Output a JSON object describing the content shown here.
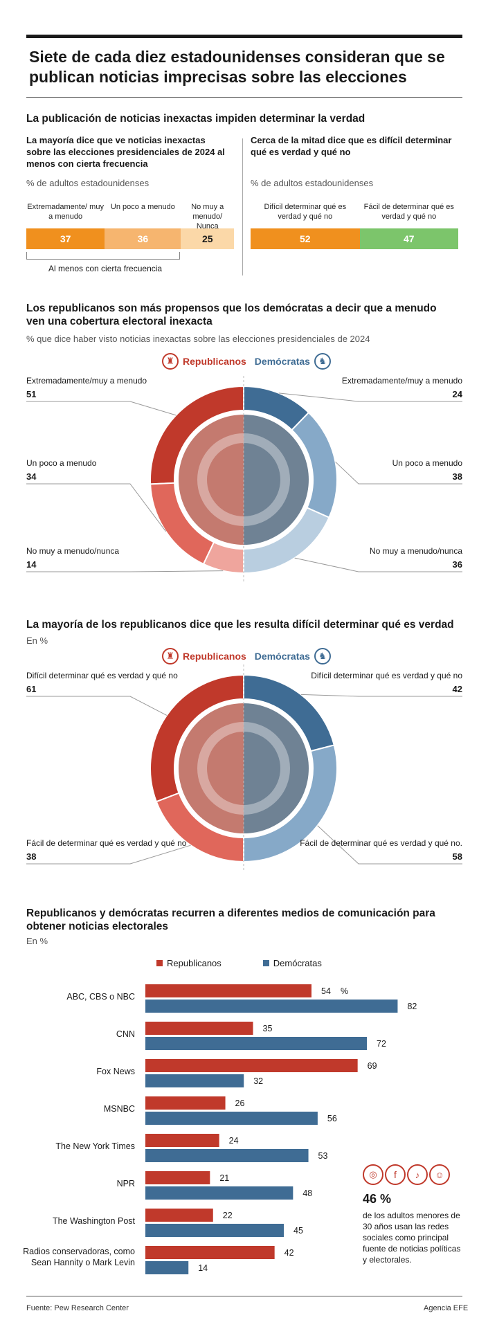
{
  "headline": "Siete de cada diez estadounidenses consideran que se publican noticias imprecisas sobre las elecciones",
  "section1": {
    "title": "La publicación de noticias inexactas impiden determinar la verdad",
    "left": {
      "heading": "La mayoría dice que ve noticias inexactas sobre las elecciones presidenciales de 2024 al menos con cierta frecuencia",
      "unit": "% de adultos estadounidenses",
      "segments": [
        {
          "label": "Extremadamente/ muy a menudo",
          "value": 37,
          "color": "#f0901e"
        },
        {
          "label": "Un poco a menudo",
          "value": 36,
          "color": "#f6b56f"
        },
        {
          "label": "No muy a menudo/ Nunca",
          "value": 25,
          "color": "#fbd8a8"
        }
      ],
      "bracket_label": "Al menos con cierta frecuencia"
    },
    "right": {
      "heading": "Cerca de la mitad dice que es difícil determinar qué es verdad y qué no",
      "unit": "% de adultos estadounidenses",
      "segments": [
        {
          "label": "Difícil determinar qué es verdad y qué no",
          "value": 52,
          "color": "#f0901e"
        },
        {
          "label": "Fácil de determinar qué es verdad y qué no",
          "value": 47,
          "color": "#7cc56b"
        }
      ]
    }
  },
  "legend": {
    "rep": "Republicanos",
    "dem": "Demócratas"
  },
  "section2": {
    "title": "Los republicanos son más propensos que los demócratas a decir que a menudo ven una cobertura electoral inexacta",
    "subtitle": "% que dice haber visto noticias inexactas sobre las elecciones presidenciales de 2024",
    "rep": [
      {
        "label": "Extremadamente/muy a menudo",
        "value": 51,
        "color": "#c0392b"
      },
      {
        "label": "Un poco a menudo",
        "value": 34,
        "color": "#e0675b"
      },
      {
        "label": "No muy a menudo/nunca",
        "value": 14,
        "color": "#efa59d"
      }
    ],
    "dem": [
      {
        "label": "Extremadamente/muy a menudo",
        "value": 24,
        "color": "#3f6c94"
      },
      {
        "label": "Un poco a menudo",
        "value": 38,
        "color": "#86a9c8"
      },
      {
        "label": "No muy a menudo/nunca",
        "value": 36,
        "color": "#b9cee0"
      }
    ]
  },
  "section3": {
    "title": "La mayoría de los republicanos dice que les resulta difícil determinar qué es verdad",
    "subtitle": "En %",
    "rep": [
      {
        "label": "Difícil determinar qué es verdad y qué no",
        "value": 61,
        "color": "#c0392b"
      },
      {
        "label": "Fácil de determinar qué es verdad y qué no",
        "value": 38,
        "color": "#e0675b"
      }
    ],
    "dem": [
      {
        "label": "Difícil determinar qué es verdad y qué no",
        "value": 42,
        "color": "#3f6c94"
      },
      {
        "label": "Fácil de determinar qué es verdad y qué no.",
        "value": 58,
        "color": "#86a9c8"
      }
    ]
  },
  "chart_data": {
    "type": "bar",
    "title": "Republicanos y demócratas recurren a diferentes medios de comunicación para obtener noticias electorales",
    "subtitle": "En %",
    "categories": [
      "ABC, CBS o NBC",
      "CNN",
      "Fox News",
      "MSNBC",
      "The New York Times",
      "NPR",
      "The Washington Post",
      "Radios conservadoras, como Sean Hannity o Mark Levin"
    ],
    "series": [
      {
        "name": "Republicanos",
        "values": [
          54,
          35,
          69,
          26,
          24,
          21,
          22,
          42
        ],
        "color": "#c0392b"
      },
      {
        "name": "Demócratas",
        "values": [
          82,
          72,
          32,
          56,
          53,
          48,
          45,
          14
        ],
        "color": "#3f6c94"
      }
    ],
    "unit_suffix": "%",
    "xlim": [
      0,
      90
    ]
  },
  "callout": {
    "value": "46 %",
    "text": "de los adultos menores de 30 años usan las redes sociales como principal fuente de noticias políticas y electorales."
  },
  "footer": {
    "source": "Fuente: Pew Research Center",
    "agency": "Agencia EFE"
  },
  "colors": {
    "rep": "#c0392b",
    "dem": "#3f6c94"
  }
}
